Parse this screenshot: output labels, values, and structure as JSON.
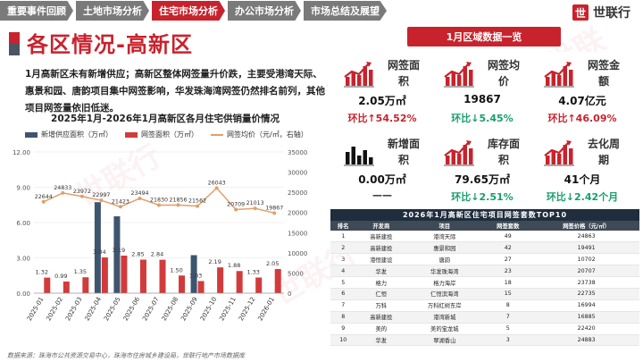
{
  "nav": {
    "tabs": [
      {
        "label": "重要事件回顾",
        "active": false
      },
      {
        "label": "土地市场分析",
        "active": false
      },
      {
        "label": "住宅市场分析",
        "active": true
      },
      {
        "label": "办公市场分析",
        "active": false
      },
      {
        "label": "市场总结及展望",
        "active": false
      }
    ],
    "brand": "世联行",
    "brand_mark": "世"
  },
  "page": {
    "title": "各区情况-高新区",
    "summary": "1月高新区未有新增供应；高新区整体网签量升价跌，主要受港湾天际、惠景和园、唐韵项目集中网签影响，华发珠海湾网签仍然排名前列，其他项目网签量依旧低迷。",
    "source": "数据来源：珠海市公共资源交易中心，珠海市住房城乡建设局，世联行地产市场数据库"
  },
  "chart_data": {
    "type": "bar",
    "title": "2025年1月-2026年1月高新区各月住宅供销量价情况",
    "categories": [
      "2025-01",
      "2025-02",
      "2025-03",
      "2025-04",
      "2025-05",
      "2025-06",
      "2025-07",
      "2025-08",
      "2025-09",
      "2025-10",
      "2025-11",
      "2025-12",
      "2026-01"
    ],
    "ylim": [
      0,
      12
    ],
    "y2lim": [
      0,
      35000
    ],
    "yticks": [
      "0.00",
      "3.00",
      "6.00",
      "9.00",
      "12.00"
    ],
    "y2ticks": [
      "0",
      "5000",
      "10000",
      "15000",
      "20000",
      "25000",
      "30000",
      "35000"
    ],
    "series": [
      {
        "name": "新增供应面积（万㎡）",
        "color": "#3e5570",
        "values": [
          0,
          0,
          0,
          7.73,
          6.53,
          0,
          0,
          0,
          3.23,
          0,
          0,
          0,
          0
        ],
        "labels": [
          "",
          "",
          "",
          "",
          "",
          "",
          "",
          "",
          "",
          "",
          "",
          "",
          ""
        ]
      },
      {
        "name": "网签面积（万㎡）",
        "color": "#d23b3b",
        "values": [
          1.32,
          0.99,
          1.35,
          3.04,
          3.19,
          2.85,
          2.84,
          1.5,
          1.03,
          2.19,
          1.88,
          1.33,
          2.05
        ],
        "labels": [
          "1.32",
          "0.99",
          "1.35",
          "3.04",
          "3.19",
          "2.85",
          "2.84",
          "1.50",
          "1.03",
          "2.19",
          "1.88",
          "1.33",
          "2.05"
        ]
      },
      {
        "name": "网签均价（元/㎡，右轴）",
        "color": "#e0a06a",
        "values": [
          22644,
          24833,
          23972,
          22997,
          21423,
          23494,
          21830,
          21856,
          21562,
          26043,
          20709,
          21013,
          19867
        ],
        "labels": [
          "22644",
          "24833",
          "23972",
          "22997",
          "21423",
          "23494",
          "21830",
          "21856",
          "21562",
          "26043",
          "20709",
          "21013",
          "19867"
        ]
      }
    ]
  },
  "panel": {
    "title": "1月区域数据一览",
    "kpis": [
      {
        "label": "网签面积",
        "value": "2.05万㎡",
        "change": "环比↑54.52%",
        "dir": "up"
      },
      {
        "label": "网签均价",
        "value": "19867",
        "change": "环比↓5.45%",
        "dir": "down"
      },
      {
        "label": "网签金额",
        "value": "4.07亿元",
        "change": "环比↑46.09%",
        "dir": "up"
      },
      {
        "label": "新增面积",
        "value": "0.00万㎡",
        "change": "——",
        "dir": "none"
      },
      {
        "label": "库存面积",
        "value": "79.65万㎡",
        "change": "环比↓2.51%",
        "dir": "down"
      },
      {
        "label": "去化周期",
        "value": "41个月",
        "change": "环比↓2.42个月",
        "dir": "down"
      }
    ]
  },
  "table": {
    "title": "2026年1月高新区住宅项目网签套数TOP10",
    "headers": [
      "排名",
      "开发商",
      "项目",
      "网签套数",
      "网签价格（元/㎡）"
    ],
    "rows": [
      [
        "1",
        "高新建投",
        "港湾天际",
        "49",
        "24863"
      ],
      [
        "2",
        "高新建投",
        "惠景和园",
        "42",
        "19491"
      ],
      [
        "3",
        "港恒建设",
        "唐韵",
        "27",
        "10702"
      ],
      [
        "4",
        "华发",
        "华发珠海湾",
        "23",
        "20707"
      ],
      [
        "5",
        "格力",
        "格力海岸",
        "18",
        "23738"
      ],
      [
        "6",
        "仁恒",
        "仁恒滨海湾",
        "15",
        "22735"
      ],
      [
        "7",
        "万科",
        "万科红树东岸",
        "8",
        "16994"
      ],
      [
        "8",
        "高新建投",
        "港湾新城",
        "7",
        "16885"
      ],
      [
        "9",
        "美的",
        "美的宝龙城",
        "5",
        "22420"
      ],
      [
        "10",
        "华发",
        "翠湖香山",
        "3",
        "24883"
      ]
    ]
  }
}
